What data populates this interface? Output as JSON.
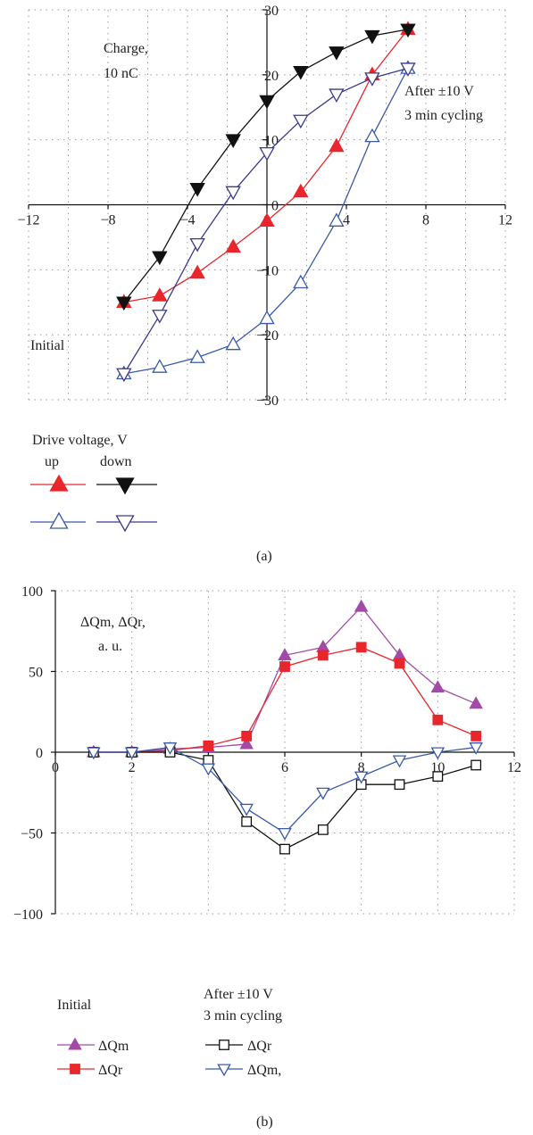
{
  "chart_data": [
    {
      "type": "line",
      "caption": "(a)",
      "annotations": {
        "ylabel_lines": [
          "Charge,",
          "10 nC"
        ],
        "after_lines": [
          "After ±10 V",
          "3 min cycling"
        ],
        "initial": "Initial"
      },
      "xticks": [
        -12,
        -8,
        -4,
        0,
        4,
        8,
        12
      ],
      "yticks": [
        30,
        20,
        10,
        0,
        -10,
        -20,
        -30
      ],
      "xlim": [
        -12,
        12
      ],
      "ylim": [
        -30,
        30
      ],
      "grid": true,
      "legend": {
        "title": "Drive voltage, V",
        "col_headers": [
          "up",
          "down"
        ]
      },
      "series": [
        {
          "key": "initial_up",
          "color": "#e8262b",
          "marker": "triangle-up",
          "filled": true,
          "x": [
            -7.2,
            -5.4,
            -3.5,
            -1.7,
            0,
            1.7,
            3.5,
            5.3,
            7.1
          ],
          "y": [
            -15,
            -14,
            -10.5,
            -6.5,
            -2.5,
            2,
            9,
            20,
            27
          ]
        },
        {
          "key": "initial_down",
          "color": "#111111",
          "marker": "triangle-down",
          "filled": true,
          "x": [
            7.1,
            5.3,
            3.5,
            1.7,
            0,
            -1.7,
            -3.5,
            -5.4,
            -7.2
          ],
          "y": [
            27,
            26,
            23.5,
            20.5,
            16,
            10,
            2.5,
            -8,
            -15
          ]
        },
        {
          "key": "after_up",
          "color": "#3a5aa8",
          "marker": "triangle-up",
          "filled": false,
          "x": [
            -7.2,
            -5.4,
            -3.5,
            -1.7,
            0,
            1.7,
            3.5,
            5.3,
            7.1
          ],
          "y": [
            -26,
            -25,
            -23.5,
            -21.5,
            -17.5,
            -12,
            -2.5,
            10.5,
            21
          ]
        },
        {
          "key": "after_down",
          "color": "#3a3a8a",
          "marker": "triangle-down",
          "filled": false,
          "x": [
            7.1,
            5.3,
            3.5,
            1.7,
            0,
            -1.7,
            -3.5,
            -5.4,
            -7.2
          ],
          "y": [
            21,
            19.5,
            17,
            13,
            8,
            2,
            -6,
            -17,
            -26
          ]
        }
      ]
    },
    {
      "type": "line",
      "caption": "(b)",
      "annotations": {
        "ylabel_lines": [
          "ΔQm,    ΔQr,",
          "a. u."
        ]
      },
      "xticks": [
        0,
        2,
        4,
        6,
        8,
        10,
        12
      ],
      "yticks": [
        100,
        50,
        0,
        -50,
        -100
      ],
      "xlim": [
        0,
        12
      ],
      "ylim": [
        -100,
        100
      ],
      "grid": true,
      "legend": {
        "initial_title": "Initial",
        "after_title_lines": [
          "After ±10 V",
          "3 min cycling"
        ],
        "labels": {
          "initial_m": "ΔQm",
          "initial_r": "ΔQr",
          "after_r": "ΔQr",
          "after_m": "ΔQm,"
        }
      },
      "series": [
        {
          "key": "initial_m",
          "color": "#a34aa8",
          "marker": "triangle-up",
          "filled": true,
          "x": [
            1,
            2,
            3,
            4,
            5,
            6,
            7,
            8,
            9,
            10,
            11
          ],
          "y": [
            0,
            0,
            2,
            3,
            5,
            60,
            65,
            90,
            60,
            40,
            30
          ]
        },
        {
          "key": "initial_r",
          "color": "#e8262b",
          "marker": "square",
          "filled": true,
          "x": [
            1,
            2,
            3,
            4,
            5,
            6,
            7,
            8,
            9,
            10,
            11
          ],
          "y": [
            0,
            0,
            1,
            4,
            10,
            53,
            60,
            65,
            55,
            20,
            10
          ]
        },
        {
          "key": "after_r",
          "color": "#111111",
          "marker": "square",
          "filled": false,
          "x": [
            1,
            2,
            3,
            4,
            5,
            6,
            7,
            8,
            9,
            10,
            11
          ],
          "y": [
            0,
            0,
            0,
            -5,
            -43,
            -60,
            -48,
            -20,
            -20,
            -15,
            -8
          ]
        },
        {
          "key": "after_m",
          "color": "#3a5aa8",
          "marker": "triangle-down",
          "filled": false,
          "x": [
            1,
            2,
            3,
            4,
            5,
            6,
            7,
            8,
            9,
            10,
            11
          ],
          "y": [
            0,
            0,
            3,
            -10,
            -35,
            -50,
            -25,
            -15,
            -5,
            0,
            3
          ]
        }
      ]
    }
  ]
}
